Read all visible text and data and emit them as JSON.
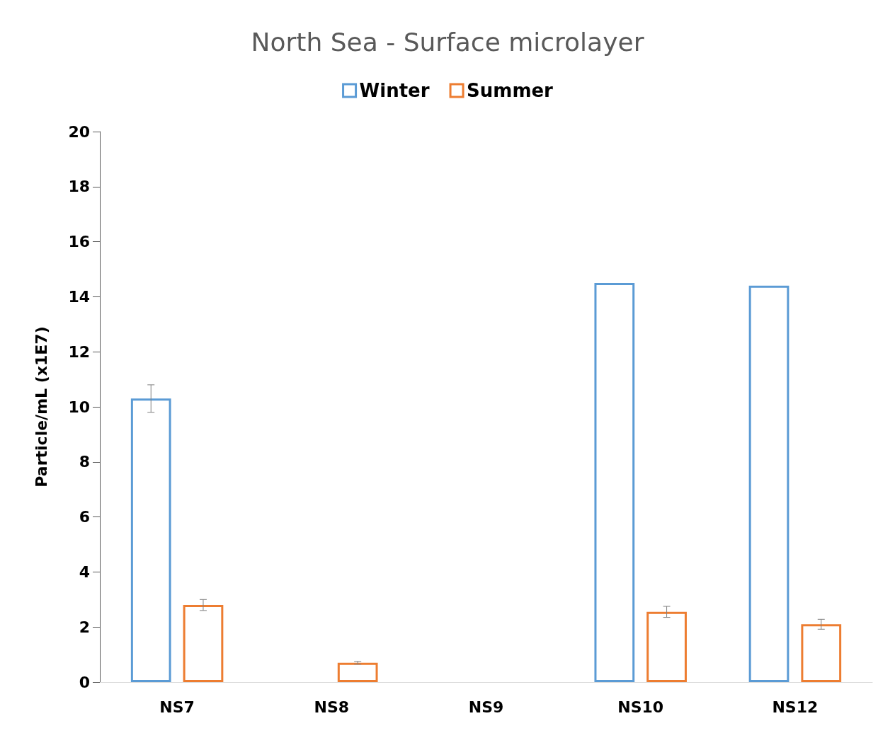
{
  "chart_data": {
    "type": "bar",
    "title": "North Sea - Surface microlayer",
    "ylabel": "Particle/mL (x1E7)",
    "categories": [
      "NS7",
      "NS8",
      "NS9",
      "NS10",
      "NS12"
    ],
    "series": [
      {
        "name": "Winter",
        "color": "#5b9bd5",
        "values": [
          10.3,
          null,
          null,
          14.5,
          14.4
        ],
        "errors": [
          0.5,
          null,
          null,
          null,
          null
        ]
      },
      {
        "name": "Summer",
        "color": "#ed7d31",
        "values": [
          2.8,
          0.7,
          null,
          2.55,
          2.1
        ],
        "errors": [
          0.2,
          0.05,
          null,
          0.2,
          0.18
        ]
      }
    ],
    "ylim": [
      0,
      20
    ],
    "yticks": [
      0,
      2,
      4,
      6,
      8,
      10,
      12,
      14,
      16,
      18,
      20
    ],
    "grid": false,
    "legend": "top"
  }
}
